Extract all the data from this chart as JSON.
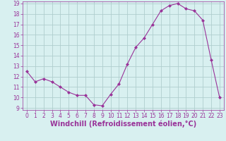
{
  "hours": [
    0,
    1,
    2,
    3,
    4,
    5,
    6,
    7,
    8,
    9,
    10,
    11,
    12,
    13,
    14,
    15,
    16,
    17,
    18,
    19,
    20,
    21,
    22,
    23
  ],
  "values": [
    12.5,
    11.5,
    11.8,
    11.5,
    11.0,
    10.5,
    10.2,
    10.2,
    9.3,
    9.2,
    10.3,
    11.3,
    13.2,
    14.8,
    15.7,
    17.0,
    18.3,
    18.8,
    19.0,
    18.5,
    18.3,
    17.4,
    13.6,
    10.0
  ],
  "line_color": "#993399",
  "marker": "D",
  "marker_size": 2.0,
  "bg_color": "#d8f0f0",
  "grid_color": "#b0cece",
  "xlabel": "Windchill (Refroidissement éolien,°C)",
  "ylim": [
    9,
    19
  ],
  "xlim": [
    -0.5,
    23.5
  ],
  "yticks": [
    9,
    10,
    11,
    12,
    13,
    14,
    15,
    16,
    17,
    18,
    19
  ],
  "xticks": [
    0,
    1,
    2,
    3,
    4,
    5,
    6,
    7,
    8,
    9,
    10,
    11,
    12,
    13,
    14,
    15,
    16,
    17,
    18,
    19,
    20,
    21,
    22,
    23
  ],
  "tick_label_size": 5.5,
  "xlabel_size": 7.0
}
